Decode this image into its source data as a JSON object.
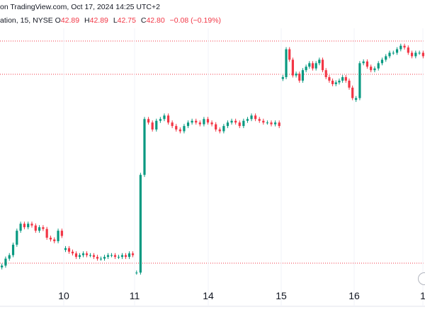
{
  "header": {
    "line1": "on TradingView.com, Oct 17, 2024 14:25 UTC+2",
    "line2_prefix": "ation, 15, NYSE",
    "o_label": "O",
    "o_value": "42.89",
    "h_label": "H",
    "h_value": "42.89",
    "l_label": "L",
    "l_value": "42.75",
    "c_label": "C",
    "c_value": "42.80",
    "change": "−0.08 (−0.19%)"
  },
  "colors": {
    "up": "#089981",
    "down": "#f23645",
    "grid": "#e0e3eb",
    "axis_text": "#131722",
    "price_line": "#f23645"
  },
  "chart_data": {
    "type": "candlestick",
    "interval": "15",
    "exchange": "NYSE",
    "x_tick_labels": [
      "10",
      "11",
      "14",
      "15",
      "16",
      "1"
    ],
    "y_range": [
      36.5,
      44.0
    ],
    "sessions": [
      {
        "label": "9",
        "o": 37.2,
        "c": 38.3,
        "trend": [
          37.2,
          37.4,
          37.5,
          37.8,
          38.2,
          38.4,
          38.3,
          38.4,
          38.35,
          38.2,
          38.3,
          38.25,
          38.0,
          37.95,
          37.9,
          38.2,
          38.05
        ]
      },
      {
        "label": "10",
        "o": 37.7,
        "c": 37.5,
        "trend": [
          37.7,
          37.6,
          37.55,
          37.45,
          37.5,
          37.55,
          37.5,
          37.5,
          37.45,
          37.4,
          37.4,
          37.45,
          37.5,
          37.5,
          37.45,
          37.45,
          37.5,
          37.45,
          37.55,
          37.5
        ]
      },
      {
        "label": "11",
        "o": 37.0,
        "c": 41.4,
        "trend": [
          37.0,
          39.8,
          41.4,
          41.3,
          41.1,
          41.35,
          41.4,
          41.5,
          41.3,
          41.2,
          41.1,
          41.05,
          41.2,
          41.3,
          41.35,
          41.3,
          41.25,
          41.4,
          41.3,
          41.25,
          41.1,
          41.05,
          41.2,
          41.3,
          41.35,
          41.3,
          41.2,
          41.35,
          41.4,
          41.5,
          41.4,
          41.35,
          41.3,
          41.3,
          41.25,
          41.3,
          41.2
        ]
      },
      {
        "label": "15",
        "o": 42.6,
        "c": 43.3,
        "trend": [
          42.6,
          43.4,
          43.1,
          42.65,
          42.7,
          42.5,
          42.8,
          42.9,
          43.0,
          42.85,
          43.0,
          43.1,
          42.8,
          42.6,
          42.5,
          42.4,
          42.45,
          42.5,
          42.6,
          42.5,
          42.3,
          42.0
        ]
      },
      {
        "label": "16",
        "o": 42.0,
        "c": 43.2,
        "trend": [
          42.0,
          43.0,
          43.05,
          42.9,
          42.8,
          42.85,
          43.0,
          43.1,
          43.2,
          43.3,
          43.3,
          43.4,
          43.5,
          43.45,
          43.3,
          43.2,
          43.3,
          43.3,
          43.2
        ]
      }
    ],
    "last_close": 42.8
  }
}
